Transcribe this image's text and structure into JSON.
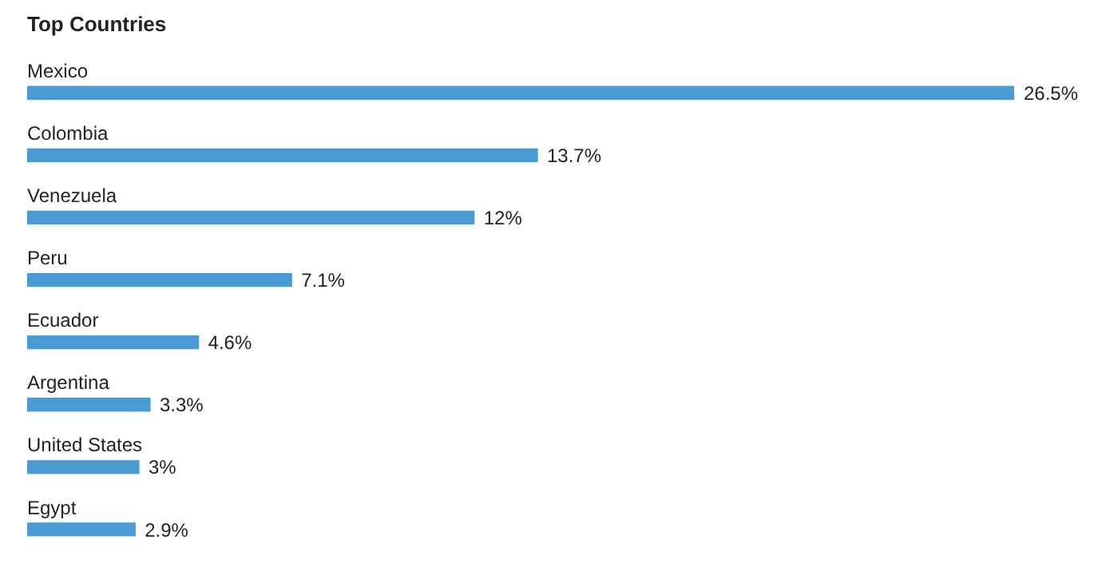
{
  "chart_data": {
    "type": "bar",
    "title": "Top Countries",
    "orientation": "horizontal",
    "categories": [
      "Mexico",
      "Colombia",
      "Venezuela",
      "Peru",
      "Ecuador",
      "Argentina",
      "United States",
      "Egypt"
    ],
    "values": [
      26.5,
      13.7,
      12,
      7.1,
      4.6,
      3.3,
      3,
      2.9
    ],
    "value_labels": [
      "26.5%",
      "13.7%",
      "12%",
      "7.1%",
      "4.6%",
      "3.3%",
      "3%",
      "2.9%"
    ],
    "color": "#4a9bd4"
  }
}
